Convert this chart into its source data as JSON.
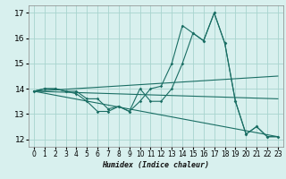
{
  "xlabel": "Humidex (Indice chaleur)",
  "bg_color": "#d8f0ee",
  "grid_color": "#a8d4ce",
  "line_color": "#1a6e64",
  "xlim": [
    -0.5,
    23.5
  ],
  "ylim": [
    11.7,
    17.3
  ],
  "yticks": [
    12,
    13,
    14,
    15,
    16,
    17
  ],
  "xticks": [
    0,
    1,
    2,
    3,
    4,
    5,
    6,
    7,
    8,
    9,
    10,
    11,
    12,
    13,
    14,
    15,
    16,
    17,
    18,
    19,
    20,
    21,
    22,
    23
  ],
  "line1_x": [
    0,
    1,
    2,
    3,
    4,
    5,
    6,
    7,
    8,
    9,
    10,
    11,
    12,
    13,
    14,
    15,
    16,
    17,
    18,
    19,
    20,
    21,
    22,
    23
  ],
  "line1_y": [
    13.9,
    14.0,
    14.0,
    13.9,
    13.8,
    13.5,
    13.1,
    13.1,
    13.3,
    13.1,
    13.5,
    14.0,
    14.1,
    15.0,
    16.5,
    16.2,
    15.9,
    17.0,
    15.8,
    13.5,
    12.2,
    12.5,
    12.1,
    12.1
  ],
  "line2_x": [
    0,
    1,
    2,
    3,
    4,
    5,
    6,
    7,
    8,
    9,
    10,
    11,
    12,
    13,
    14,
    15,
    16,
    17,
    18,
    19,
    20,
    21,
    22,
    23
  ],
  "line2_y": [
    13.9,
    14.0,
    14.0,
    13.9,
    13.9,
    13.6,
    13.6,
    13.2,
    13.3,
    13.1,
    14.0,
    13.5,
    13.5,
    14.0,
    15.0,
    16.2,
    15.9,
    17.0,
    15.8,
    13.5,
    12.2,
    12.5,
    12.1,
    12.1
  ],
  "trend1_x": [
    0,
    23
  ],
  "trend1_y": [
    13.9,
    14.5
  ],
  "trend2_x": [
    0,
    23
  ],
  "trend2_y": [
    13.9,
    13.6
  ],
  "trend3_x": [
    0,
    23
  ],
  "trend3_y": [
    13.9,
    12.1
  ]
}
